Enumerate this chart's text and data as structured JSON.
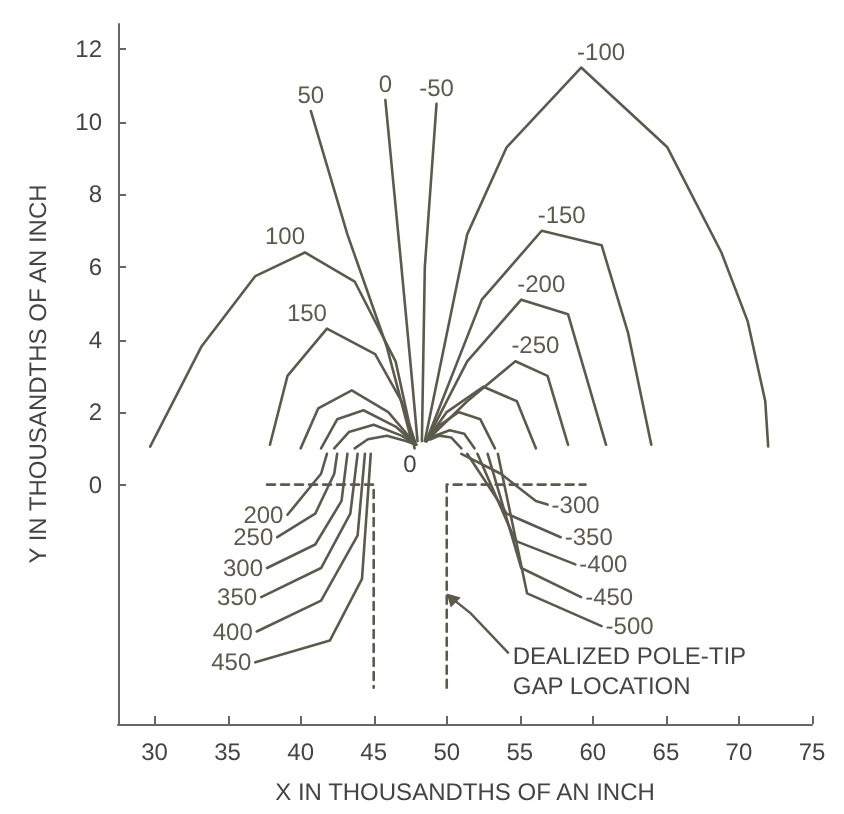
{
  "chart_data": {
    "type": "line",
    "xlabel": "X IN THOUSANDTHS OF AN INCH",
    "ylabel": "Y IN THOUSANDTHS OF AN INCH",
    "xlim": [
      27.5,
      75
    ],
    "xticks": [
      30,
      35,
      40,
      45,
      50,
      55,
      60,
      65,
      70,
      75
    ],
    "ylim": [
      -6.6,
      12.7
    ],
    "yticks": [
      0,
      2,
      4,
      6,
      8,
      10,
      12
    ],
    "grid": false,
    "legend": false,
    "marker": "none",
    "series": [
      {
        "name": "100",
        "color": "#5b5b4c",
        "x": [
          29.7,
          33.2,
          36.9,
          40.3,
          43.7,
          46.5,
          47.8
        ],
        "values": [
          1.05,
          3.8,
          5.75,
          6.4,
          5.6,
          3.4,
          1.0
        ]
      },
      {
        "name": "150",
        "color": "#5b5b4c",
        "x": [
          37.9,
          39.1,
          41.8,
          45.1,
          46.9,
          47.9
        ],
        "values": [
          1.1,
          3.0,
          4.3,
          3.6,
          2.3,
          1.1
        ]
      },
      {
        "color": "#5b5b4c",
        "x": [
          40.0,
          41.2,
          43.5,
          46.0,
          47.9
        ],
        "values": [
          1.0,
          2.1,
          2.6,
          2.0,
          1.1
        ]
      },
      {
        "color": "#5b5b4c",
        "x": [
          41.4,
          42.5,
          44.3,
          46.5,
          47.9
        ],
        "values": [
          1.0,
          1.8,
          2.05,
          1.6,
          1.1
        ]
      },
      {
        "color": "#5b5b4c",
        "x": [
          42.3,
          43.3,
          45.0,
          46.9,
          47.9
        ],
        "values": [
          1.0,
          1.45,
          1.65,
          1.35,
          1.1
        ]
      },
      {
        "color": "#5b5b4c",
        "x": [
          43.7,
          44.6,
          45.9,
          47.2,
          47.9
        ],
        "values": [
          1.0,
          1.25,
          1.35,
          1.2,
          1.1
        ]
      },
      {
        "name": "50",
        "color": "#5b5b4c",
        "x": [
          40.7,
          43.2,
          45.9,
          47.6
        ],
        "values": [
          10.3,
          6.9,
          3.8,
          1.2
        ]
      },
      {
        "name": "0",
        "color": "#5b5b4c",
        "x": [
          45.8,
          46.9,
          47.6,
          48.0
        ],
        "values": [
          10.6,
          6.0,
          3.0,
          1.2
        ]
      },
      {
        "name": "-50",
        "color": "#5b5b4c",
        "x": [
          49.3,
          48.5,
          48.3
        ],
        "values": [
          10.5,
          6.0,
          1.2
        ]
      },
      {
        "name": "-100",
        "color": "#5b5b4c",
        "x": [
          72.0,
          71.8,
          70.6,
          68.8,
          65.1,
          59.2,
          54.1,
          51.4,
          48.5
        ],
        "values": [
          1.05,
          2.3,
          4.5,
          6.4,
          9.3,
          11.5,
          9.3,
          6.9,
          1.2
        ]
      },
      {
        "name": "-150",
        "color": "#5b5b4c",
        "x": [
          64.0,
          62.4,
          60.6,
          56.5,
          52.4,
          48.6
        ],
        "values": [
          1.1,
          4.2,
          6.6,
          7.0,
          5.1,
          1.2
        ]
      },
      {
        "name": "-200",
        "color": "#5b5b4c",
        "x": [
          60.9,
          58.3,
          55.1,
          51.4,
          48.6
        ],
        "values": [
          1.1,
          4.7,
          5.1,
          3.4,
          1.2
        ]
      },
      {
        "name": "-250",
        "color": "#5b5b4c",
        "x": [
          58.3,
          56.9,
          54.7,
          51.4,
          48.6
        ],
        "values": [
          1.1,
          3.0,
          3.4,
          2.3,
          1.2
        ]
      },
      {
        "color": "#5b5b4c",
        "x": [
          56.1,
          54.8,
          52.5,
          50.0,
          48.6
        ],
        "values": [
          1.0,
          2.3,
          2.7,
          2.0,
          1.2
        ]
      },
      {
        "color": "#5b5b4c",
        "x": [
          53.3,
          52.3,
          50.8,
          49.4,
          48.6
        ],
        "values": [
          1.0,
          1.8,
          2.0,
          1.6,
          1.2
        ]
      },
      {
        "color": "#5b5b4c",
        "x": [
          51.9,
          51.2,
          50.2,
          49.2,
          48.6
        ],
        "values": [
          1.0,
          1.4,
          1.5,
          1.35,
          1.2
        ]
      },
      {
        "color": "#5b5b4c",
        "x": [
          51.0,
          50.3,
          49.5,
          48.9
        ],
        "values": [
          1.0,
          1.3,
          1.35,
          1.25
        ]
      },
      {
        "name": "200",
        "color": "#5b5b4c",
        "x": [
          39.1,
          41.4,
          41.8
        ],
        "values": [
          -0.83,
          0.3,
          0.85
        ]
      },
      {
        "name": "250",
        "color": "#5b5b4c",
        "x": [
          38.4,
          41.0,
          42.3,
          42.5
        ],
        "values": [
          -1.45,
          -0.8,
          0.3,
          0.85
        ]
      },
      {
        "name": "300",
        "color": "#5b5b4c",
        "x": [
          37.7,
          41.0,
          42.8,
          43.2
        ],
        "values": [
          -2.3,
          -1.65,
          -0.45,
          0.85
        ]
      },
      {
        "name": "350",
        "color": "#5b5b4c",
        "x": [
          37.3,
          41.4,
          43.4,
          43.9
        ],
        "values": [
          -3.1,
          -2.3,
          -0.8,
          0.85
        ]
      },
      {
        "name": "400",
        "color": "#5b5b4c",
        "x": [
          37.0,
          41.4,
          43.9,
          44.4
        ],
        "values": [
          -4.05,
          -3.2,
          -1.4,
          0.85
        ]
      },
      {
        "name": "450",
        "color": "#5b5b4c",
        "x": [
          36.9,
          42.0,
          44.2,
          44.8
        ],
        "values": [
          -4.9,
          -4.3,
          -2.6,
          0.85
        ]
      },
      {
        "name": "-300",
        "color": "#5b5b4c",
        "x": [
          56.9,
          56.1,
          53.7,
          51.0
        ],
        "values": [
          -0.55,
          -0.45,
          0.3,
          0.85
        ]
      },
      {
        "name": "-350",
        "color": "#5b5b4c",
        "x": [
          57.8,
          54.1,
          51.4
        ],
        "values": [
          -1.45,
          -0.8,
          0.85
        ]
      },
      {
        "name": "-400",
        "color": "#5b5b4c",
        "x": [
          58.8,
          54.7,
          52.1
        ],
        "values": [
          -2.2,
          -1.55,
          0.85
        ]
      },
      {
        "name": "-450",
        "color": "#5b5b4c",
        "x": [
          59.2,
          55.1,
          52.8
        ],
        "values": [
          -3.1,
          -2.3,
          0.85
        ]
      },
      {
        "name": "-500",
        "color": "#5b5b4c",
        "x": [
          60.6,
          55.5,
          53.5
        ],
        "values": [
          -3.9,
          -3.0,
          0.85
        ]
      },
      {
        "color": "#5b5b4c",
        "line_style": "dashed",
        "x": [
          37.7,
          45,
          45
        ],
        "values": [
          0,
          0,
          -5.6
        ]
      },
      {
        "color": "#5b5b4c",
        "line_style": "dashed",
        "x": [
          50,
          50,
          59.5
        ],
        "values": [
          -5.6,
          0,
          0
        ]
      }
    ],
    "annotations": [
      "0",
      {
        "text": "DEALIZED POLE-TIP\nGAP LOCATION",
        "x": 50,
        "y": -3.0
      }
    ]
  }
}
